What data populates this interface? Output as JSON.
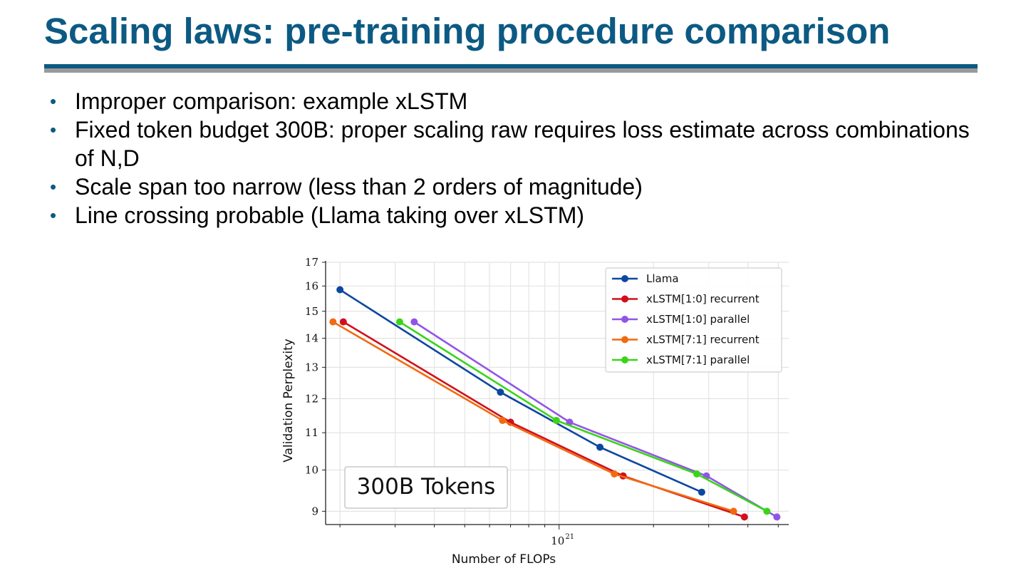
{
  "slide": {
    "title": "Scaling laws: pre-training procedure comparison",
    "bullets": [
      "Improper comparison: example xLSTM",
      "Fixed token budget 300B: proper scaling raw requires loss estimate across combinations of N,D",
      "Scale span too narrow (less than 2 orders of magnitude)",
      "Line crossing probable (Llama taking over xLSTM)"
    ],
    "bullet_glyph": "•"
  },
  "colors": {
    "title": "#0c5a83",
    "rule_primary": "#0c5a83",
    "rule_secondary": "#9a9a9a"
  },
  "chart_data": {
    "type": "line",
    "xlabel": "Number of FLOPs",
    "ylabel": "Validation Perplexity",
    "annotation": "300B Tokens",
    "x_scale": "log",
    "y_scale": "log",
    "xlim": [
      1.8e+20,
      5.4e+21
    ],
    "ylim": [
      8.7,
      17
    ],
    "x_tick_base": "10",
    "x_tick_exponent": "21",
    "y_ticks": [
      "9",
      "10",
      "11",
      "12",
      "13",
      "14",
      "15",
      "16",
      "17"
    ],
    "grid": true,
    "legend_position": "top-right",
    "series": [
      {
        "name": "Llama",
        "color": "#0d47a1",
        "x": [
          2e+20,
          6.5e+20,
          1.35e+21,
          2.85e+21
        ],
        "y": [
          15.85,
          12.2,
          10.6,
          9.45
        ]
      },
      {
        "name": "xLSTM[1:0] recurrent",
        "color": "#d0101a",
        "x": [
          2.05e+20,
          7e+20,
          1.6e+21,
          3.9e+21
        ],
        "y": [
          14.6,
          11.3,
          9.85,
          8.87
        ]
      },
      {
        "name": "xLSTM[1:0] parallel",
        "color": "#9155e6",
        "x": [
          3.45e+20,
          1.08e+21,
          2.95e+21,
          4.95e+21
        ],
        "y": [
          14.6,
          11.3,
          9.85,
          8.87
        ]
      },
      {
        "name": "xLSTM[7:1] recurrent",
        "color": "#f26a10",
        "x": [
          1.9e+20,
          6.6e+20,
          1.5e+21,
          3.6e+21
        ],
        "y": [
          14.6,
          11.35,
          9.9,
          9.0
        ]
      },
      {
        "name": "xLSTM[7:1] parallel",
        "color": "#3bd419",
        "x": [
          3.1e+20,
          9.8e+20,
          2.75e+21,
          4.6e+21
        ],
        "y": [
          14.6,
          11.35,
          9.9,
          9.0
        ]
      }
    ]
  }
}
